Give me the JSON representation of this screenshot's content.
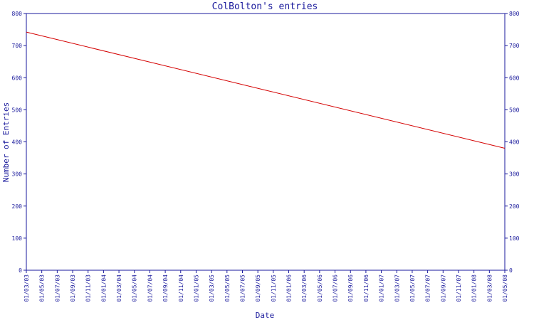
{
  "colors": {
    "axis": "#1a1a9c",
    "series_line": "#d40000",
    "text": "#1a1a9c",
    "background": "#ffffff"
  },
  "chart_data": {
    "type": "line",
    "title": "ColBolton's entries",
    "xlabel": "Date",
    "ylabel": "Number of Entries",
    "ylim": [
      0,
      800
    ],
    "y_ticks": [
      0,
      100,
      200,
      300,
      400,
      500,
      600,
      700,
      800
    ],
    "x_tick_labels": [
      "01/03/03",
      "01/05/03",
      "01/07/03",
      "01/09/03",
      "01/11/03",
      "01/01/04",
      "01/03/04",
      "01/05/04",
      "01/07/04",
      "01/09/04",
      "01/11/04",
      "01/01/05",
      "01/03/05",
      "01/05/05",
      "01/07/05",
      "01/09/05",
      "01/11/05",
      "01/01/06",
      "01/03/06",
      "01/05/06",
      "01/07/06",
      "01/09/06",
      "01/11/06",
      "01/01/07",
      "01/03/07",
      "01/05/07",
      "01/07/07",
      "01/09/07",
      "01/11/07",
      "01/01/08",
      "01/03/08",
      "01/05/08"
    ],
    "grid": false,
    "series": [
      {
        "x": [
          "01/03/03",
          "01/05/08"
        ],
        "y": [
          742,
          380
        ]
      }
    ]
  }
}
